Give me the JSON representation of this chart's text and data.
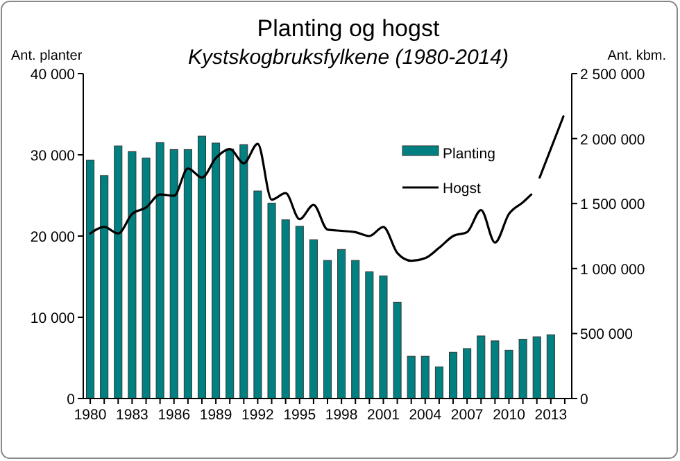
{
  "chart_data": {
    "type": "bar",
    "title": "Planting og hogst",
    "subtitle": "Kystskogbruksfylkene (1980-2014)",
    "ylabel": "Ant. planter",
    "y2label": "Ant. kbm.",
    "x": [
      1980,
      1981,
      1982,
      1983,
      1984,
      1985,
      1986,
      1987,
      1988,
      1989,
      1990,
      1991,
      1992,
      1993,
      1994,
      1995,
      1996,
      1997,
      1998,
      1999,
      2000,
      2001,
      2002,
      2003,
      2004,
      2005,
      2006,
      2007,
      2008,
      2009,
      2010,
      2011,
      2012,
      2013
    ],
    "xlim": [
      1979.5,
      2014.5
    ],
    "xticks": [
      {
        "value": 1980,
        "label": "1980"
      },
      {
        "value": 1981,
        "label": null
      },
      {
        "value": 1982,
        "label": null
      },
      {
        "value": 1983,
        "label": "1983"
      },
      {
        "value": 1984,
        "label": null
      },
      {
        "value": 1985,
        "label": null
      },
      {
        "value": 1986,
        "label": "1986"
      },
      {
        "value": 1987,
        "label": null
      },
      {
        "value": 1988,
        "label": null
      },
      {
        "value": 1989,
        "label": "1989"
      },
      {
        "value": 1990,
        "label": null
      },
      {
        "value": 1991,
        "label": null
      },
      {
        "value": 1992,
        "label": "1992"
      },
      {
        "value": 1993,
        "label": null
      },
      {
        "value": 1994,
        "label": null
      },
      {
        "value": 1995,
        "label": "1995"
      },
      {
        "value": 1996,
        "label": null
      },
      {
        "value": 1997,
        "label": null
      },
      {
        "value": 1998,
        "label": "1998"
      },
      {
        "value": 1999,
        "label": null
      },
      {
        "value": 2000,
        "label": null
      },
      {
        "value": 2001,
        "label": "2001"
      },
      {
        "value": 2002,
        "label": null
      },
      {
        "value": 2003,
        "label": null
      },
      {
        "value": 2004,
        "label": "2004"
      },
      {
        "value": 2005,
        "label": null
      },
      {
        "value": 2006,
        "label": null
      },
      {
        "value": 2007,
        "label": "2007"
      },
      {
        "value": 2008,
        "label": null
      },
      {
        "value": 2009,
        "label": null
      },
      {
        "value": 2010,
        "label": "2010"
      },
      {
        "value": 2011,
        "label": null
      },
      {
        "value": 2012,
        "label": null
      },
      {
        "value": 2013,
        "label": "2013"
      },
      {
        "value": 2014,
        "label": null
      }
    ],
    "ylim": [
      0,
      40000
    ],
    "yticks": [
      0,
      {
        "value": 10000,
        "label": "10 000"
      },
      {
        "value": 20000,
        "label": "20 000"
      },
      {
        "value": 30000,
        "label": "30 000"
      },
      {
        "value": 40000,
        "label": "40 000"
      }
    ],
    "y2lim": [
      0,
      2500000
    ],
    "y2ticks": [
      0,
      {
        "value": 500000,
        "label": "500 000"
      },
      {
        "value": 1000000,
        "label": "1 000 000"
      },
      {
        "value": 1500000,
        "label": "1 500 000"
      },
      {
        "value": 2000000,
        "label": "2 000 000"
      },
      {
        "value": 2500000,
        "label": "2 500 000"
      }
    ],
    "legend": "top right",
    "series": [
      {
        "name": "Planting",
        "color": "#008080",
        "values": [
          29350,
          27450,
          31100,
          30400,
          29600,
          31500,
          30650,
          30650,
          32300,
          31450,
          30700,
          31250,
          25550,
          24050,
          22000,
          21200,
          19550,
          17000,
          18350,
          17000,
          15600,
          15100,
          11850,
          5200,
          5200,
          3900,
          5700,
          6150,
          7700,
          7100,
          5950,
          7300,
          7600,
          7850
        ]
      },
      {
        "name": "Hogst",
        "type": "line",
        "axis": "y2",
        "color": "#000000",
        "x": [
          1980,
          1981,
          1982,
          1983,
          1984,
          1985,
          1986,
          1987,
          1988,
          1989,
          1990,
          1991,
          1992,
          1993,
          1994,
          1995,
          1996,
          1997,
          1998,
          1999,
          2000,
          2001,
          2002,
          2003,
          2004,
          2005,
          2006,
          2007,
          2008,
          2009,
          2010,
          2011,
          2011.6,
          2011.9,
          2012.2,
          2013.9
        ],
        "values": [
          1270000,
          1320000,
          1270000,
          1420000,
          1470000,
          1570000,
          1560000,
          1770000,
          1700000,
          1850000,
          1920000,
          1810000,
          1960000,
          1530000,
          1580000,
          1380000,
          1490000,
          1300000,
          1290000,
          1280000,
          1250000,
          1320000,
          1120000,
          1060000,
          1080000,
          1160000,
          1250000,
          1280000,
          1450000,
          1200000,
          1420000,
          1510000,
          1570000,
          null,
          1700000,
          2170000
        ]
      }
    ]
  }
}
